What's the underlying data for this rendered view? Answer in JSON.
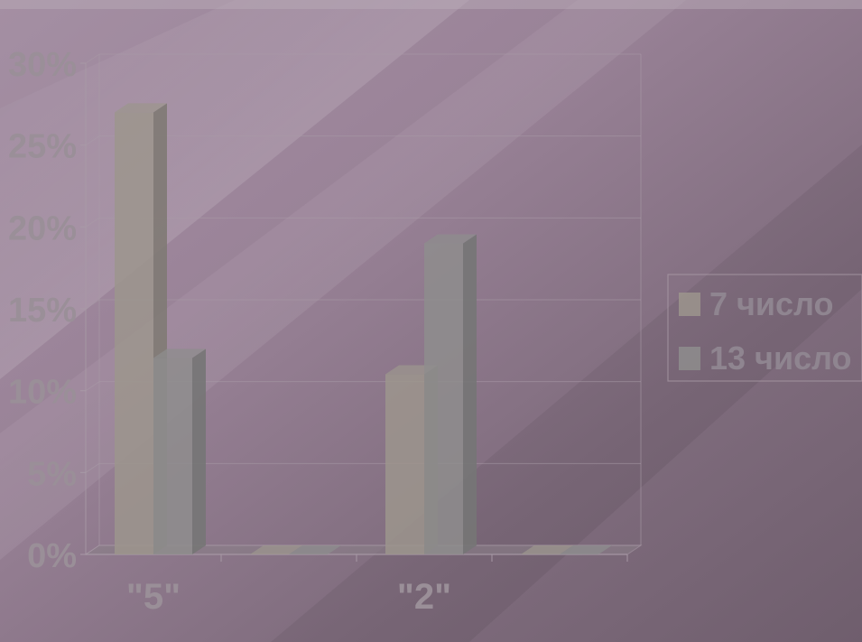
{
  "chart_data": {
    "type": "bar",
    "categories": [
      "\"5\"",
      "",
      "\"2\"",
      ""
    ],
    "series": [
      {
        "name": "7 число",
        "values": [
          27,
          0,
          11,
          0
        ]
      },
      {
        "name": "13 число",
        "values": [
          12,
          0,
          19,
          0
        ]
      }
    ],
    "ylim": [
      0,
      30
    ],
    "yticks": [
      "0%",
      "5%",
      "10%",
      "15%",
      "20%",
      "25%",
      "30%"
    ],
    "grid": true,
    "legend": "right",
    "colors": {
      "series1": "#9c958d",
      "series2": "#8e8d8d",
      "series1_side": "#7f7a74",
      "series2_side": "#767576",
      "background": "#7d6b7b"
    }
  }
}
